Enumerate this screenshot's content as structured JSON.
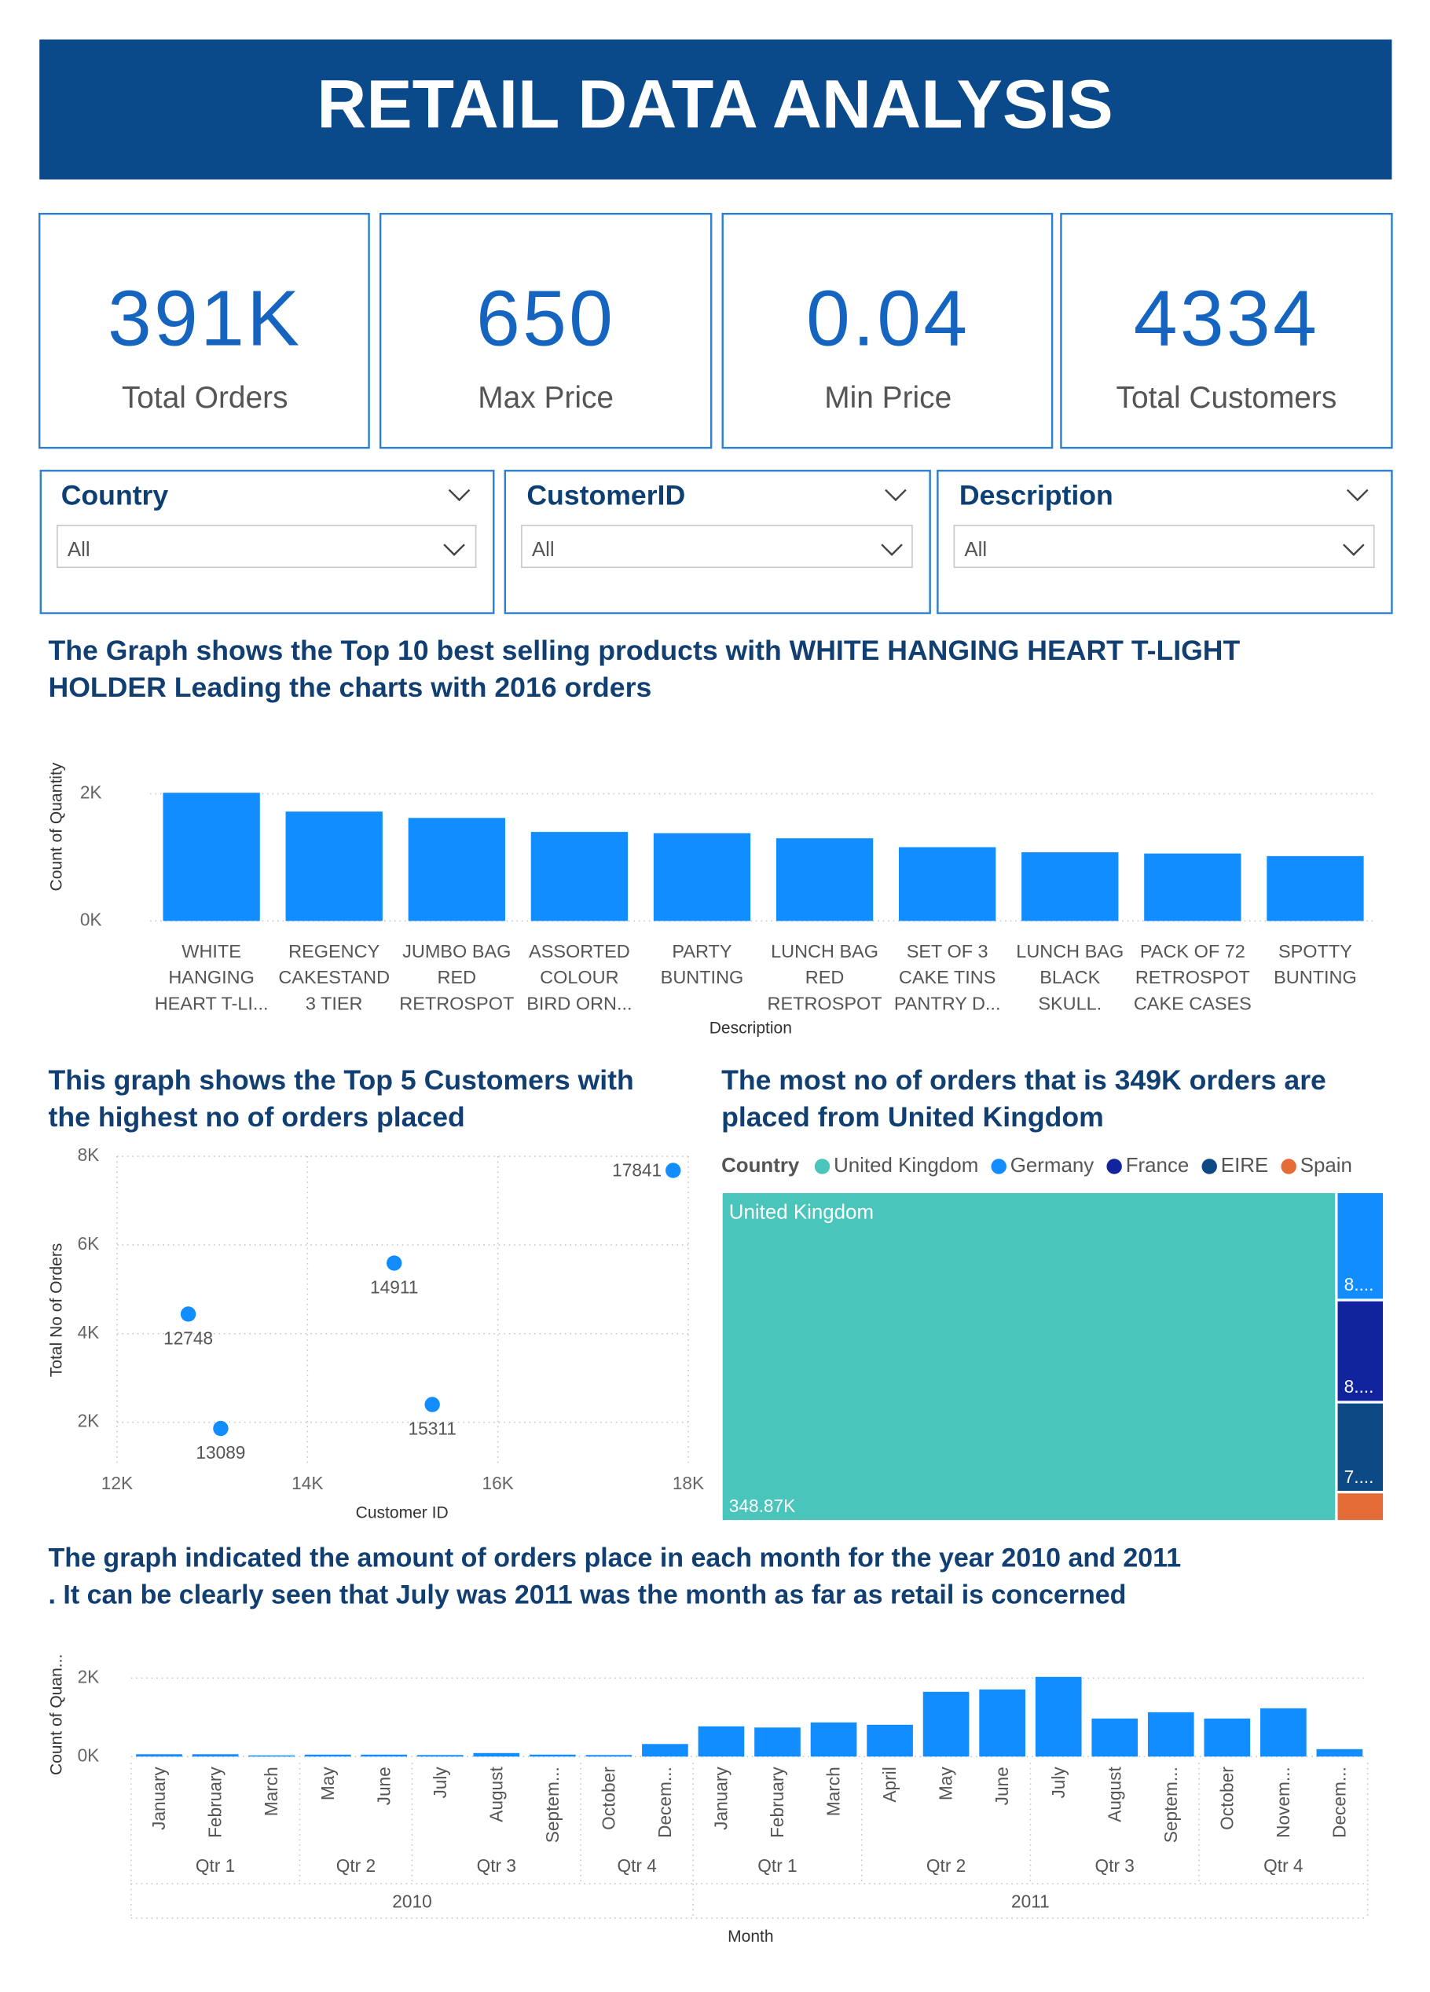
{
  "header": {
    "title": "RETAIL DATA ANALYSIS"
  },
  "kpis": [
    {
      "value": "391K",
      "label": "Total Orders"
    },
    {
      "value": "650",
      "label": "Max Price"
    },
    {
      "value": "0.04",
      "label": "Min Price"
    },
    {
      "value": "4334",
      "label": "Total Customers"
    }
  ],
  "filters": [
    {
      "label": "Country",
      "value": "All"
    },
    {
      "label": "CustomerID",
      "value": "All"
    },
    {
      "label": "Description",
      "value": "All"
    }
  ],
  "chart_data": [
    {
      "type": "bar",
      "title": "The Graph shows the Top 10 best selling products with WHITE HANGING HEART T-LIGHT\nHOLDER Leading the charts with 2016 orders",
      "x_label": "Description",
      "y_label": "Count of Quantity",
      "categories": [
        "WHITE\nHANGING\nHEART T-LI...",
        "REGENCY\nCAKESTAND\n3 TIER",
        "JUMBO BAG\nRED\nRETROSPOT",
        "ASSORTED\nCOLOUR\nBIRD ORN...",
        "PARTY\nBUNTING",
        "LUNCH BAG\nRED\nRETROSPOT",
        "SET OF 3\nCAKE TINS\nPANTRY D...",
        "LUNCH BAG\nBLACK\nSKULL.",
        "PACK OF 72\nRETROSPOT\nCAKE CASES",
        "SPOTTY\nBUNTING"
      ],
      "values": [
        2016,
        1720,
        1620,
        1400,
        1380,
        1300,
        1160,
        1080,
        1060,
        1020
      ],
      "color": "#118dff",
      "ylim": [
        0,
        2200
      ],
      "yticks": [
        {
          "value": 0,
          "label": "0K"
        },
        {
          "value": 2000,
          "label": "2K"
        }
      ],
      "grid": true
    },
    {
      "type": "scatter",
      "title": "This graph shows the Top 5 Customers with\nthe highest no of orders placed",
      "x_label": "Customer ID",
      "y_label": "Total No of Orders",
      "x": [
        17841,
        14911,
        12748,
        15311,
        13089
      ],
      "values": [
        7680,
        5590,
        4440,
        2400,
        1860
      ],
      "color": "#118dff",
      "xlim": [
        12000,
        18000
      ],
      "xticks": [
        {
          "value": 12000,
          "label": "12K"
        },
        {
          "value": 14000,
          "label": "14K"
        },
        {
          "value": 16000,
          "label": "16K"
        },
        {
          "value": 18000,
          "label": "18K"
        }
      ],
      "ylim": [
        1000,
        8000
      ],
      "yticks": [
        {
          "value": 2000,
          "label": "2K"
        },
        {
          "value": 4000,
          "label": "4K"
        },
        {
          "value": 6000,
          "label": "6K"
        },
        {
          "value": 8000,
          "label": "8K"
        }
      ],
      "grid": true
    },
    {
      "type": "treemap",
      "title": "The most no of orders that is 349K orders are\nplaced from United Kingdom",
      "legend_title": "Country",
      "categories": [
        "United Kingdom",
        "Germany",
        "France",
        "EIRE",
        "Spain"
      ],
      "values": [
        348870,
        8900,
        8400,
        7400,
        2400
      ],
      "value_labels": [
        "348.87K",
        "8....",
        "8....",
        "7....",
        null
      ],
      "colors": [
        "#4ac5bb",
        "#118dff",
        "#12239e",
        "#0d4a85",
        "#e66c37"
      ]
    },
    {
      "type": "bar",
      "title": "The graph indicated the amount of orders place in each month for the year 2010 and 2011\n. It can be clearly seen that July was 2011 was the month as far as retail is concerned",
      "x_label": "Month",
      "y_label": "Count of Quan...",
      "categories": [
        "January",
        "February",
        "March",
        "May",
        "June",
        "July",
        "August",
        "Septem...",
        "October",
        "Decem...",
        "January",
        "February",
        "March",
        "April",
        "May",
        "June",
        "July",
        "August",
        "Septem...",
        "October",
        "Novem...",
        "Decem..."
      ],
      "quarter": [
        "Qtr 1",
        "Qtr 1",
        "Qtr 1",
        "Qtr 2",
        "Qtr 2",
        "Qtr 3",
        "Qtr 3",
        "Qtr 3",
        "Qtr 4",
        "Qtr 4",
        "Qtr 1",
        "Qtr 1",
        "Qtr 1",
        "Qtr 2",
        "Qtr 2",
        "Qtr 2",
        "Qtr 3",
        "Qtr 3",
        "Qtr 3",
        "Qtr 4",
        "Qtr 4",
        "Qtr 4"
      ],
      "year": [
        2010,
        2010,
        2010,
        2010,
        2010,
        2010,
        2010,
        2010,
        2010,
        2010,
        2011,
        2011,
        2011,
        2011,
        2011,
        2011,
        2011,
        2011,
        2011,
        2011,
        2011,
        2011
      ],
      "values": [
        60,
        60,
        30,
        50,
        50,
        40,
        90,
        50,
        40,
        320,
        770,
        740,
        870,
        810,
        1650,
        1710,
        2030,
        970,
        1130,
        970,
        1230,
        190
      ],
      "color": "#118dff",
      "ylim": [
        0,
        2300
      ],
      "yticks": [
        {
          "value": 0,
          "label": "0K"
        },
        {
          "value": 2000,
          "label": "2K"
        }
      ],
      "grid": true
    }
  ]
}
